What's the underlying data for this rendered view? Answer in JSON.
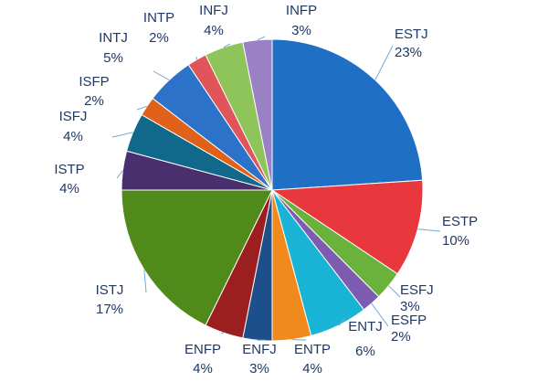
{
  "chart_data": {
    "type": "pie",
    "title": "",
    "slices": [
      {
        "name": "ESTJ",
        "value": 23,
        "label": "23%",
        "color": "#1f6fc4"
      },
      {
        "name": "ESTP",
        "value": 10,
        "label": "10%",
        "color": "#e8383d"
      },
      {
        "name": "ESFJ",
        "value": 3,
        "label": "3%",
        "color": "#6ab23b"
      },
      {
        "name": "ESFP",
        "value": 2,
        "label": "2%",
        "color": "#7d5bb0"
      },
      {
        "name": "ENTJ",
        "value": 6,
        "label": "6%",
        "color": "#19b3d6"
      },
      {
        "name": "ENTP",
        "value": 4,
        "label": "4%",
        "color": "#f18a1c"
      },
      {
        "name": "ENFJ",
        "value": 3,
        "label": "3%",
        "color": "#1d4f8a"
      },
      {
        "name": "ENFP",
        "value": 4,
        "label": "4%",
        "color": "#9c1f1f"
      },
      {
        "name": "ISTJ",
        "value": 17,
        "label": "17%",
        "color": "#4f8a1a"
      },
      {
        "name": "ISTP",
        "value": 4,
        "label": "4%",
        "color": "#4a2f6f"
      },
      {
        "name": "ISFJ",
        "value": 4,
        "label": "4%",
        "color": "#10698a"
      },
      {
        "name": "ISFP",
        "value": 2,
        "label": "2%",
        "color": "#e0611a"
      },
      {
        "name": "INTJ",
        "value": 5,
        "label": "5%",
        "color": "#2b72c8"
      },
      {
        "name": "INTP",
        "value": 2,
        "label": "2%",
        "color": "#e0555a"
      },
      {
        "name": "INFJ",
        "value": 4,
        "label": "4%",
        "color": "#8fc45a"
      },
      {
        "name": "INFP",
        "value": 3,
        "label": "3%",
        "color": "#9a80c4"
      }
    ],
    "legend": "none",
    "label_style": "outside with leader lines"
  }
}
